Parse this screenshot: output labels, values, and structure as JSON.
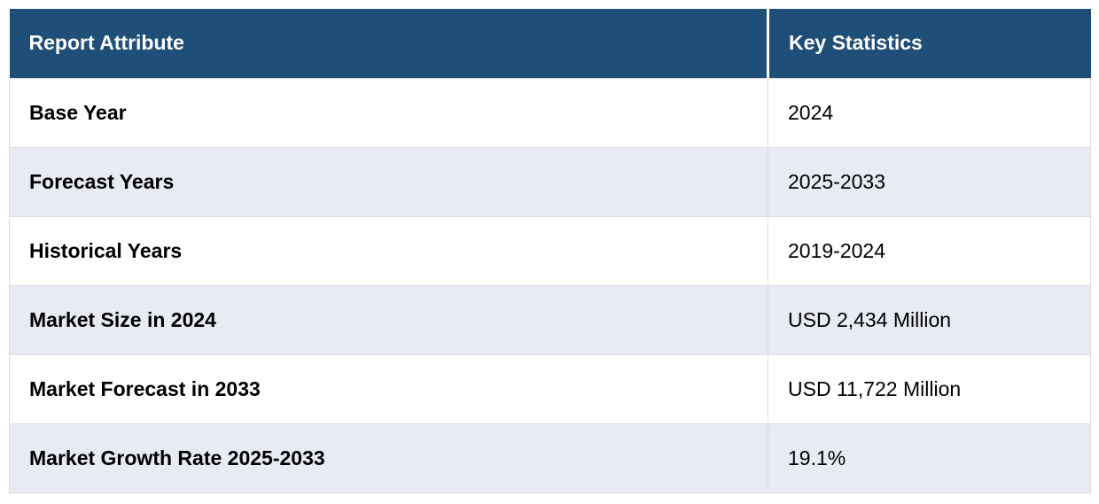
{
  "chart_data": {
    "type": "table",
    "columns": [
      "Report Attribute",
      "Key Statistics"
    ],
    "rows": [
      [
        "Base Year",
        "2024"
      ],
      [
        "Forecast Years",
        "2025-2033"
      ],
      [
        "Historical Years",
        "2019-2024"
      ],
      [
        "Market Size in 2024",
        "USD 2,434 Million"
      ],
      [
        "Market Forecast in 2033",
        "USD 11,722 Million"
      ],
      [
        "Market Growth Rate 2025-2033",
        "19.1%"
      ]
    ]
  },
  "colors": {
    "header_bg": "#1F4E78",
    "header_text": "#FFFFFF",
    "stripe_bg": "#E8EAF4",
    "row_bg": "#FFFFFF",
    "border": "#DDDDDD",
    "body_text": "#000000"
  }
}
